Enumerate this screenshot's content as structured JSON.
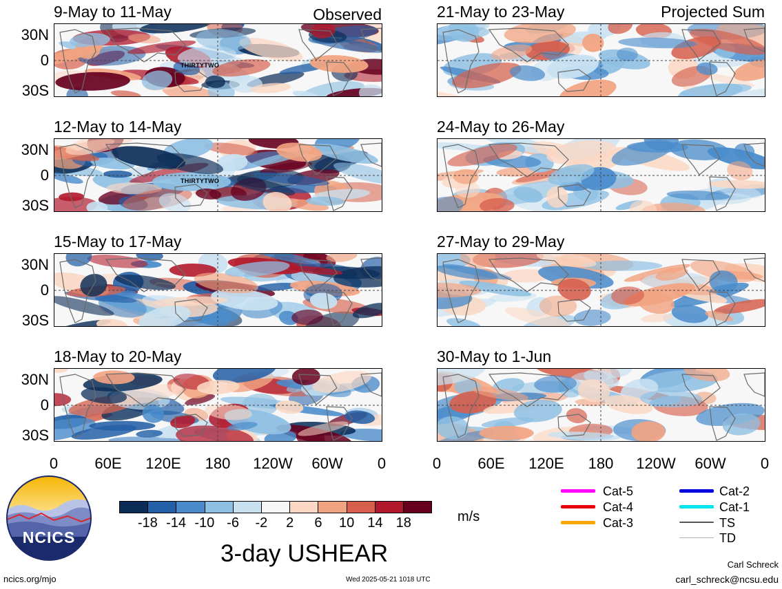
{
  "header": {
    "left": "Observed",
    "right": "Projected Sum"
  },
  "observed_panels": [
    "9-May to 11-May",
    "12-May to 14-May",
    "15-May to 17-May",
    "18-May to 20-May"
  ],
  "projected_panels": [
    "21-May to 23-May",
    "24-May to 26-May",
    "27-May to 29-May",
    "30-May to 1-Jun"
  ],
  "storm_label": "THIRTYTWO",
  "lat_labels": [
    "30N",
    "0",
    "30S"
  ],
  "lon_labels": [
    "0",
    "60E",
    "120E",
    "180",
    "120W",
    "60W",
    "0"
  ],
  "colorbar": {
    "colors": [
      "#0b2c57",
      "#2460a7",
      "#4a8ccb",
      "#8ec0e3",
      "#c8e1f1",
      "#f7f7f7",
      "#fbd8c4",
      "#f2a482",
      "#d6604d",
      "#b2182b",
      "#67001f"
    ],
    "labels": [
      "-18",
      "-14",
      "-10",
      "-6",
      "-2",
      "2",
      "6",
      "10",
      "14",
      "18"
    ],
    "unit": "m/s"
  },
  "title": "3-day USHEAR",
  "logo_text": "NCICS",
  "legend": {
    "col1": [
      {
        "label": "Cat-5",
        "color": "#ff00ff"
      },
      {
        "label": "Cat-4",
        "color": "#e8000b"
      },
      {
        "label": "Cat-3",
        "color": "#ffa500"
      }
    ],
    "col2": [
      {
        "label": "Cat-2",
        "color": "#0000e0"
      },
      {
        "label": "Cat-1",
        "color": "#00e5ee"
      },
      {
        "label": "TS",
        "color": "#555555"
      },
      {
        "label": "TD",
        "color": "#b0b0b0"
      }
    ]
  },
  "footer": {
    "url": "ncics.org/mjo",
    "timestamp": "Wed 2025-05-21 1018 UTC",
    "author": "Carl Schreck",
    "email": "carl_schreck@ncsu.edu"
  }
}
